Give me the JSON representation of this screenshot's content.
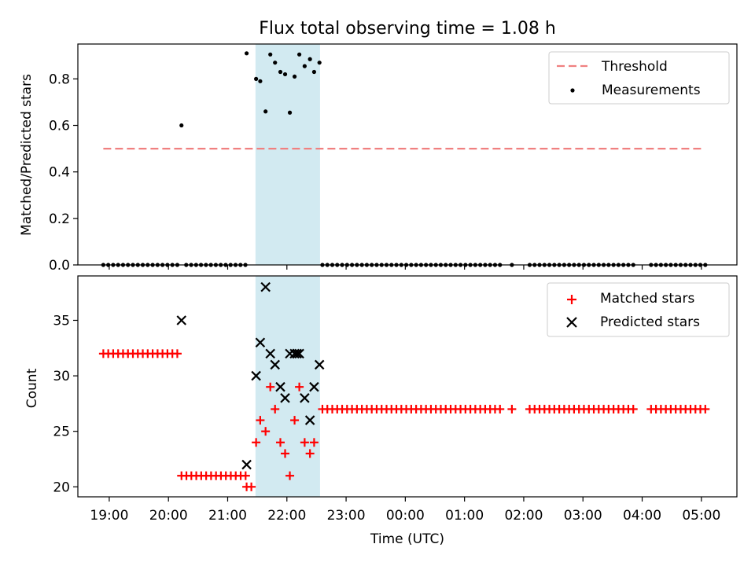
{
  "chart_data": {
    "type": "scatter",
    "title": "Flux total observing time = 1.08 h",
    "xlabel": "Time (UTC)",
    "x_unit": "hours since 00:00 UTC (values >= 24 are next day)",
    "xlim": [
      18.47,
      29.6
    ],
    "xticks": [
      19,
      20,
      21,
      22,
      23,
      24,
      25,
      26,
      27,
      28,
      29
    ],
    "xtick_labels": [
      "19:00",
      "20:00",
      "21:00",
      "22:00",
      "23:00",
      "00:00",
      "01:00",
      "02:00",
      "03:00",
      "04:00",
      "05:00"
    ],
    "shaded_interval": [
      21.47,
      22.56
    ],
    "shade_color": "#add8e6",
    "top": {
      "ylabel": "Matched/Predicted stars",
      "ylim": [
        0,
        0.95
      ],
      "yticks": [
        0.0,
        0.2,
        0.4,
        0.6,
        0.8
      ],
      "ytick_labels": [
        "0.0",
        "0.2",
        "0.4",
        "0.6",
        "0.8"
      ],
      "threshold": {
        "value": 0.5,
        "x_range": [
          18.9,
          29.05
        ],
        "color": "#f08080",
        "label": "Threshold"
      },
      "measurements": {
        "label": "Measurements",
        "color": "#000000",
        "zero_segments": [
          {
            "start": 18.9,
            "end": 20.15,
            "step": 0.0833
          },
          {
            "start": 20.3,
            "end": 21.3,
            "step": 0.0833
          },
          {
            "start": 22.6,
            "end": 25.6,
            "step": 0.0833
          },
          {
            "start": 25.8,
            "end": 25.8,
            "step": 0.0833
          },
          {
            "start": 26.1,
            "end": 27.0,
            "step": 0.0833
          },
          {
            "start": 27.1,
            "end": 27.85,
            "step": 0.0833
          },
          {
            "start": 28.15,
            "end": 29.1,
            "step": 0.0833
          }
        ],
        "points": [
          {
            "x": 20.22,
            "y": 0.6
          },
          {
            "x": 21.32,
            "y": 0.91
          },
          {
            "x": 21.48,
            "y": 0.8
          },
          {
            "x": 21.55,
            "y": 0.79
          },
          {
            "x": 21.64,
            "y": 0.66
          },
          {
            "x": 21.72,
            "y": 0.905
          },
          {
            "x": 21.8,
            "y": 0.87
          },
          {
            "x": 21.89,
            "y": 0.83
          },
          {
            "x": 21.97,
            "y": 0.82
          },
          {
            "x": 22.05,
            "y": 0.655
          },
          {
            "x": 22.13,
            "y": 0.81
          },
          {
            "x": 22.21,
            "y": 0.905
          },
          {
            "x": 22.3,
            "y": 0.855
          },
          {
            "x": 22.39,
            "y": 0.885
          },
          {
            "x": 22.46,
            "y": 0.83
          },
          {
            "x": 22.55,
            "y": 0.87
          }
        ]
      }
    },
    "bottom": {
      "ylabel": "Count",
      "ylim": [
        19.1,
        39.0
      ],
      "yticks": [
        20,
        25,
        30,
        35
      ],
      "ytick_labels": [
        "20",
        "25",
        "30",
        "35"
      ],
      "matched": {
        "label": "Matched stars",
        "color": "#ff0000",
        "segments": [
          {
            "start": 18.9,
            "end": 20.15,
            "value": 32
          },
          {
            "start": 20.22,
            "end": 21.3,
            "value": 21
          },
          {
            "start": 22.6,
            "end": 25.6,
            "value": 27
          },
          {
            "start": 25.8,
            "end": 25.8,
            "value": 27
          },
          {
            "start": 26.1,
            "end": 27.0,
            "value": 27
          },
          {
            "start": 27.1,
            "end": 27.85,
            "value": 27
          },
          {
            "start": 28.15,
            "end": 29.1,
            "value": 27
          }
        ],
        "step": 0.0833,
        "points": [
          {
            "x": 21.32,
            "y": 20
          },
          {
            "x": 21.4,
            "y": 20
          },
          {
            "x": 21.48,
            "y": 24
          },
          {
            "x": 21.55,
            "y": 26
          },
          {
            "x": 21.64,
            "y": 25
          },
          {
            "x": 21.72,
            "y": 29
          },
          {
            "x": 21.8,
            "y": 27
          },
          {
            "x": 21.89,
            "y": 24
          },
          {
            "x": 21.97,
            "y": 23
          },
          {
            "x": 22.05,
            "y": 21
          },
          {
            "x": 22.13,
            "y": 26
          },
          {
            "x": 22.21,
            "y": 29
          },
          {
            "x": 22.3,
            "y": 24
          },
          {
            "x": 22.39,
            "y": 23
          },
          {
            "x": 22.46,
            "y": 24
          }
        ]
      },
      "predicted": {
        "label": "Predicted stars",
        "color": "#000000",
        "points": [
          {
            "x": 20.22,
            "y": 35
          },
          {
            "x": 21.32,
            "y": 22
          },
          {
            "x": 21.48,
            "y": 30
          },
          {
            "x": 21.55,
            "y": 33
          },
          {
            "x": 21.64,
            "y": 38
          },
          {
            "x": 21.72,
            "y": 32
          },
          {
            "x": 21.8,
            "y": 31
          },
          {
            "x": 21.89,
            "y": 29
          },
          {
            "x": 21.97,
            "y": 28
          },
          {
            "x": 22.05,
            "y": 32
          },
          {
            "x": 22.13,
            "y": 32
          },
          {
            "x": 22.17,
            "y": 32
          },
          {
            "x": 22.21,
            "y": 32
          },
          {
            "x": 22.3,
            "y": 28
          },
          {
            "x": 22.39,
            "y": 26
          },
          {
            "x": 22.46,
            "y": 29
          },
          {
            "x": 22.55,
            "y": 31
          }
        ]
      }
    }
  }
}
